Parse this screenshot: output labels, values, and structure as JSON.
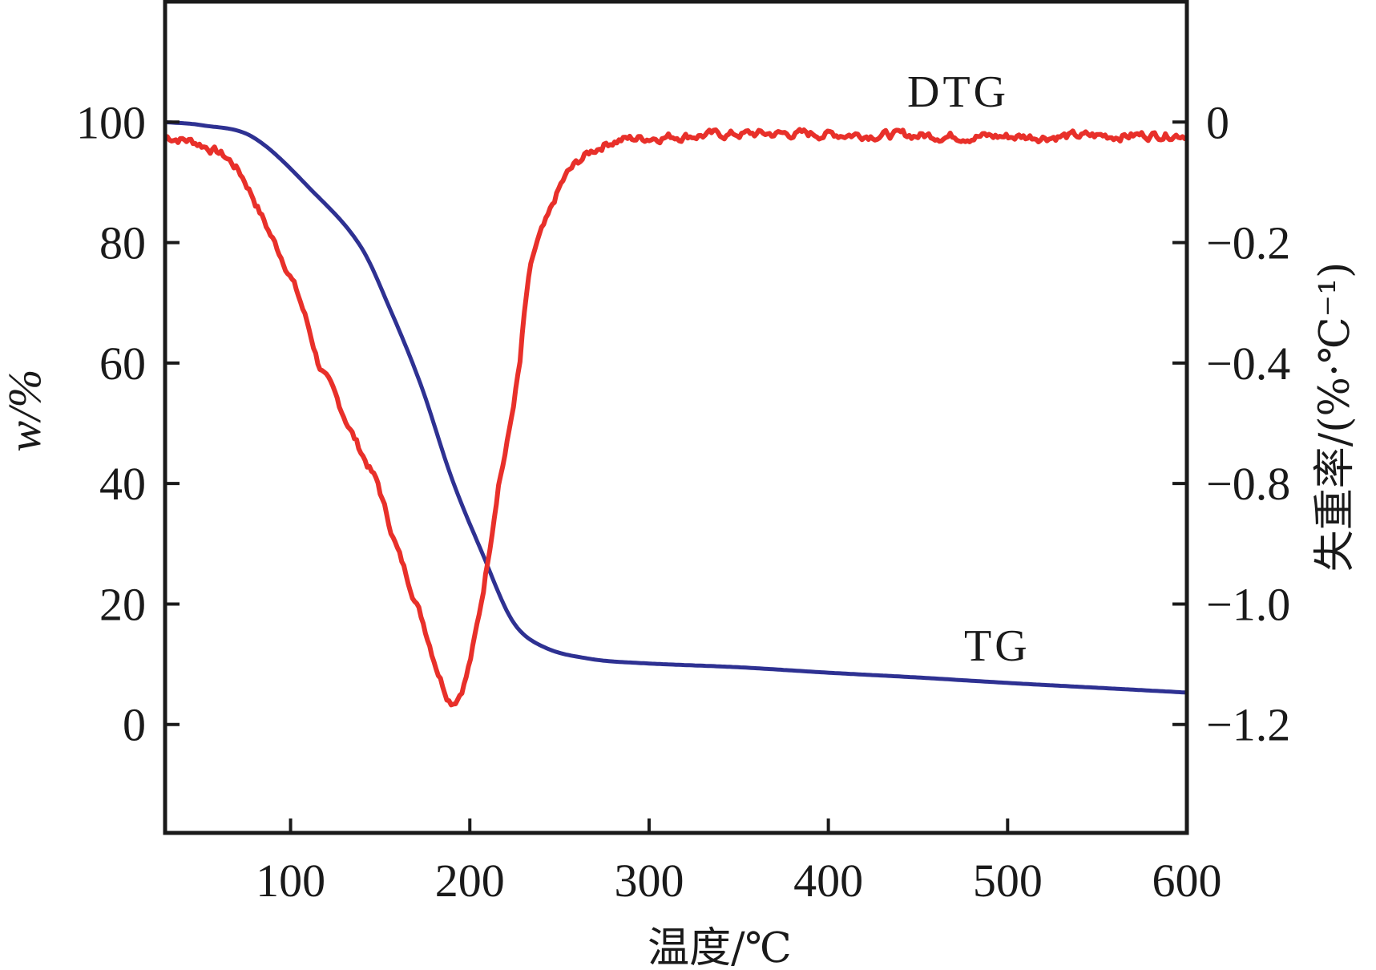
{
  "chart_data": {
    "type": "line",
    "title": "",
    "xlabel": "温度/℃",
    "ylabel_left": "w/%",
    "ylabel_right": "失重率/(%·℃⁻¹)",
    "xlim": [
      30,
      600
    ],
    "ylim_left": [
      -18,
      120
    ],
    "x_ticks": [
      "100",
      "200",
      "300",
      "400",
      "500",
      "600"
    ],
    "x_tick_values": [
      100,
      200,
      300,
      400,
      500,
      600
    ],
    "y_left_ticks": [
      "100",
      "80",
      "60",
      "40",
      "20",
      "0"
    ],
    "y_left_tick_values": [
      100,
      80,
      60,
      40,
      20,
      0
    ],
    "y_right_ticks": [
      "0",
      "−0.2",
      "−0.4",
      "−0.8",
      "−1.0",
      "−1.2"
    ],
    "y_right_tick_values": [
      0,
      -0.2,
      -0.4,
      -0.8,
      -1.0,
      -1.2
    ],
    "grid": false,
    "series": [
      {
        "name": "TG",
        "axis": "left",
        "color": "#2e3192",
        "x": [
          30,
          50,
          79,
          113,
          139,
          156,
          173,
          190,
          207,
          224,
          241,
          267,
          295,
          350,
          400,
          450,
          500,
          550,
          600
        ],
        "y": [
          100,
          99.5,
          97.5,
          88.3,
          79.4,
          68.6,
          56.1,
          40.8,
          28.4,
          17.1,
          12.9,
          10.9,
          10.2,
          9.5,
          8.6,
          7.8,
          6.9,
          6.1,
          5.3
        ]
      },
      {
        "name": "DTG",
        "axis": "right",
        "color": "#e8302a",
        "x": [
          30,
          50,
          70,
          88,
          105,
          121,
          139,
          156,
          173,
          185,
          191,
          199,
          209,
          220,
          232,
          245,
          255,
          275,
          294,
          350,
          400,
          450,
          500,
          550,
          600
        ],
        "y": [
          -0.024,
          -0.037,
          -0.077,
          -0.182,
          -0.294,
          -0.464,
          -0.69,
          -0.876,
          -1.022,
          -1.134,
          -1.16,
          -1.108,
          -0.947,
          -0.69,
          -0.281,
          -0.149,
          -0.084,
          -0.037,
          -0.027,
          -0.02,
          -0.02,
          -0.022,
          -0.024,
          -0.023,
          -0.02
        ]
      }
    ],
    "annotations": [
      {
        "text": "DTG",
        "series": "DTG"
      },
      {
        "text": "TG",
        "series": "TG"
      }
    ]
  }
}
